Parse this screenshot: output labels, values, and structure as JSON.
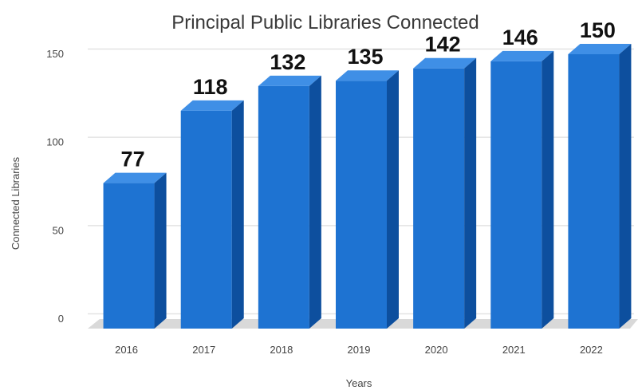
{
  "chart_data": {
    "type": "bar",
    "title": "Principal Public Libraries Connected",
    "xlabel": "Years",
    "ylabel": "Connected Libraries",
    "categories": [
      "2016",
      "2017",
      "2018",
      "2019",
      "2020",
      "2021",
      "2022"
    ],
    "values": [
      77,
      118,
      132,
      135,
      142,
      146,
      150
    ],
    "data_labels": [
      "77",
      "118",
      "132",
      "135",
      "142",
      "146",
      "150"
    ],
    "yticks": [
      0,
      50,
      100,
      150
    ],
    "ylim": [
      0,
      160
    ],
    "grid": true,
    "style": "3d-bars",
    "colors": {
      "bar_front": "#1e73d2",
      "bar_top": "#3f8fe6",
      "bar_side": "#0d4f9e",
      "grid": "#e3e3e3",
      "floor": "#d9d9d9"
    }
  }
}
